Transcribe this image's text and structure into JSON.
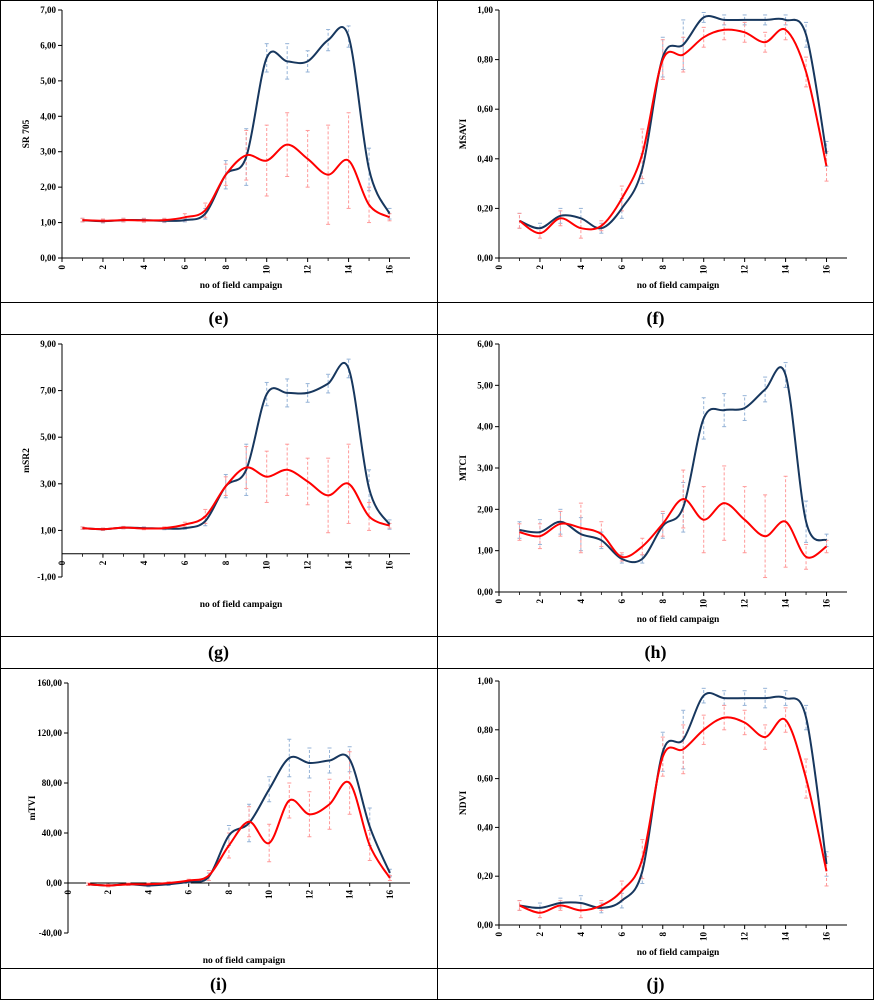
{
  "colors": {
    "series_blue": "#17375e",
    "series_red": "#ff0000",
    "errbar_blue": "#95b3d7",
    "errbar_red": "#ff9999"
  },
  "chart_data": [
    {
      "id": "e",
      "panel_label": "(e)",
      "letter": "e",
      "type": "line",
      "ylabel": "SR 705",
      "xlabel": "no of field campaign",
      "ylim": [
        0,
        7
      ],
      "ystep": 1,
      "xlim": [
        0,
        17
      ],
      "decimals": 2,
      "xticks": [
        0,
        2,
        4,
        6,
        8,
        10,
        12,
        14,
        16
      ],
      "x": [
        1,
        2,
        3,
        4,
        5,
        6,
        7,
        8,
        9,
        10,
        11,
        12,
        13,
        14,
        15,
        16
      ],
      "series": [
        {
          "name": "blue",
          "color": "#17375e",
          "values": [
            1.07,
            1.04,
            1.07,
            1.07,
            1.05,
            1.07,
            1.25,
            2.35,
            2.85,
            5.65,
            5.55,
            5.55,
            6.15,
            6.25,
            2.5,
            1.25
          ],
          "err": [
            0.05,
            0.05,
            0.05,
            0.05,
            0.05,
            0.05,
            0.15,
            0.4,
            0.8,
            0.4,
            0.5,
            0.3,
            0.3,
            0.3,
            0.6,
            0.15
          ]
        },
        {
          "name": "red",
          "color": "#ff0000",
          "values": [
            1.07,
            1.05,
            1.07,
            1.06,
            1.07,
            1.15,
            1.35,
            2.35,
            2.9,
            2.75,
            3.2,
            2.8,
            2.35,
            2.75,
            1.5,
            1.15
          ],
          "err": [
            0.05,
            0.05,
            0.05,
            0.05,
            0.05,
            0.1,
            0.2,
            0.3,
            0.7,
            1.0,
            0.9,
            0.8,
            1.4,
            1.35,
            0.5,
            0.1
          ]
        }
      ]
    },
    {
      "id": "f",
      "panel_label": "(f)",
      "letter": "f",
      "type": "line",
      "ylabel": "MSAVI",
      "xlabel": "no of field campaign",
      "ylim": [
        0,
        1
      ],
      "ystep": 0.2,
      "xlim": [
        0,
        17
      ],
      "decimals": 2,
      "xticks": [
        0,
        2,
        4,
        6,
        8,
        10,
        12,
        14,
        16
      ],
      "x": [
        1,
        2,
        3,
        4,
        5,
        6,
        7,
        8,
        9,
        10,
        11,
        12,
        13,
        14,
        15,
        16
      ],
      "series": [
        {
          "name": "blue",
          "color": "#17375e",
          "values": [
            0.15,
            0.12,
            0.17,
            0.16,
            0.12,
            0.2,
            0.36,
            0.81,
            0.86,
            0.97,
            0.96,
            0.96,
            0.96,
            0.96,
            0.9,
            0.42
          ],
          "err": [
            0.03,
            0.02,
            0.03,
            0.04,
            0.02,
            0.04,
            0.06,
            0.08,
            0.1,
            0.02,
            0.02,
            0.02,
            0.02,
            0.02,
            0.05,
            0.05
          ]
        },
        {
          "name": "red",
          "color": "#ff0000",
          "values": [
            0.15,
            0.1,
            0.16,
            0.12,
            0.13,
            0.24,
            0.42,
            0.8,
            0.82,
            0.89,
            0.92,
            0.91,
            0.87,
            0.92,
            0.75,
            0.37
          ],
          "err": [
            0.03,
            0.02,
            0.03,
            0.04,
            0.02,
            0.05,
            0.1,
            0.08,
            0.07,
            0.04,
            0.04,
            0.04,
            0.04,
            0.04,
            0.06,
            0.06
          ]
        }
      ]
    },
    {
      "id": "g",
      "panel_label": "(g)",
      "letter": "g",
      "type": "line",
      "ylabel": "mSR2",
      "xlabel": "no of field campaign",
      "ylim": [
        -1,
        9
      ],
      "ystep": 2,
      "xlim": [
        0,
        17
      ],
      "decimals": 2,
      "xticks": [
        0,
        2,
        4,
        6,
        8,
        10,
        12,
        14,
        16
      ],
      "x": [
        1,
        2,
        3,
        4,
        5,
        6,
        7,
        8,
        9,
        10,
        11,
        12,
        13,
        14,
        15,
        16
      ],
      "series": [
        {
          "name": "blue",
          "color": "#17375e",
          "values": [
            1.1,
            1.05,
            1.12,
            1.1,
            1.08,
            1.1,
            1.4,
            2.9,
            3.6,
            6.85,
            6.9,
            6.9,
            7.3,
            7.95,
            2.8,
            1.25
          ],
          "err": [
            0.05,
            0.05,
            0.05,
            0.05,
            0.05,
            0.05,
            0.2,
            0.5,
            1.1,
            0.5,
            0.6,
            0.4,
            0.4,
            0.4,
            0.8,
            0.2
          ]
        },
        {
          "name": "red",
          "color": "#ff0000",
          "values": [
            1.1,
            1.05,
            1.12,
            1.08,
            1.1,
            1.25,
            1.6,
            2.9,
            3.7,
            3.3,
            3.6,
            3.1,
            2.5,
            3.0,
            1.6,
            1.2
          ],
          "err": [
            0.05,
            0.05,
            0.05,
            0.05,
            0.05,
            0.1,
            0.3,
            0.4,
            0.9,
            1.1,
            1.1,
            1.0,
            1.6,
            1.7,
            0.6,
            0.1
          ]
        }
      ]
    },
    {
      "id": "h",
      "panel_label": "(h)",
      "letter": "h",
      "type": "line",
      "ylabel": "MTCI",
      "xlabel": "no of field campaign",
      "ylim": [
        0,
        6
      ],
      "ystep": 1,
      "xlim": [
        0,
        17
      ],
      "decimals": 2,
      "xticks": [
        0,
        2,
        4,
        6,
        8,
        10,
        12,
        14,
        16
      ],
      "x": [
        1,
        2,
        3,
        4,
        5,
        6,
        7,
        8,
        9,
        10,
        11,
        12,
        13,
        14,
        15,
        16
      ],
      "series": [
        {
          "name": "blue",
          "color": "#17375e",
          "values": [
            1.5,
            1.45,
            1.7,
            1.4,
            1.25,
            0.8,
            0.8,
            1.6,
            2.05,
            4.2,
            4.4,
            4.45,
            4.9,
            5.25,
            1.7,
            1.25
          ],
          "err": [
            0.2,
            0.3,
            0.3,
            0.4,
            0.2,
            0.1,
            0.1,
            0.3,
            0.6,
            0.5,
            0.4,
            0.3,
            0.3,
            0.3,
            0.5,
            0.15
          ]
        },
        {
          "name": "red",
          "color": "#ff0000",
          "values": [
            1.45,
            1.35,
            1.65,
            1.55,
            1.4,
            0.85,
            1.1,
            1.65,
            2.25,
            1.75,
            2.15,
            1.75,
            1.35,
            1.7,
            0.85,
            1.1
          ],
          "err": [
            0.2,
            0.3,
            0.3,
            0.6,
            0.3,
            0.1,
            0.2,
            0.3,
            0.7,
            0.8,
            0.9,
            0.8,
            1.0,
            1.1,
            0.3,
            0.15
          ]
        }
      ]
    },
    {
      "id": "i",
      "panel_label": "(i)",
      "letter": "i",
      "type": "line",
      "ylabel": "mTVI",
      "xlabel": "no of field campaign",
      "ylim": [
        -40,
        160
      ],
      "ystep": 40,
      "xlim": [
        0,
        17
      ],
      "decimals": 2,
      "xticks": [
        0,
        2,
        4,
        6,
        8,
        10,
        12,
        14,
        16
      ],
      "x": [
        1,
        2,
        3,
        4,
        5,
        6,
        7,
        8,
        9,
        10,
        11,
        12,
        13,
        14,
        15,
        16
      ],
      "series": [
        {
          "name": "blue",
          "color": "#17375e",
          "values": [
            -1,
            -2,
            -1,
            -2,
            -1,
            1,
            5,
            38,
            48,
            75,
            100,
            96,
            98,
            99,
            45,
            8
          ],
          "err": [
            1,
            1,
            1,
            1,
            1,
            1,
            3,
            8,
            15,
            10,
            15,
            12,
            10,
            10,
            15,
            3
          ]
        },
        {
          "name": "red",
          "color": "#ff0000",
          "values": [
            -1,
            -2,
            -1,
            -1,
            0,
            2,
            6,
            30,
            49,
            32,
            66,
            55,
            63,
            80,
            30,
            4
          ],
          "err": [
            1,
            1,
            1,
            1,
            1,
            1,
            4,
            10,
            12,
            15,
            14,
            18,
            20,
            25,
            12,
            2
          ]
        }
      ]
    },
    {
      "id": "j",
      "panel_label": "(j)",
      "letter": "j",
      "type": "line",
      "ylabel": "NDVI",
      "xlabel": "no of field campaign",
      "ylim": [
        0,
        1
      ],
      "ystep": 0.2,
      "xlim": [
        0,
        17
      ],
      "decimals": 2,
      "xticks": [
        0,
        2,
        4,
        6,
        8,
        10,
        12,
        14,
        16
      ],
      "x": [
        1,
        2,
        3,
        4,
        5,
        6,
        7,
        8,
        9,
        10,
        11,
        12,
        13,
        14,
        15,
        16
      ],
      "series": [
        {
          "name": "blue",
          "color": "#17375e",
          "values": [
            0.08,
            0.07,
            0.09,
            0.09,
            0.07,
            0.1,
            0.22,
            0.71,
            0.76,
            0.94,
            0.93,
            0.93,
            0.93,
            0.93,
            0.85,
            0.25
          ],
          "err": [
            0.02,
            0.02,
            0.02,
            0.03,
            0.02,
            0.03,
            0.05,
            0.08,
            0.12,
            0.03,
            0.03,
            0.03,
            0.04,
            0.03,
            0.05,
            0.05
          ]
        },
        {
          "name": "red",
          "color": "#ff0000",
          "values": [
            0.08,
            0.05,
            0.08,
            0.06,
            0.08,
            0.14,
            0.27,
            0.69,
            0.72,
            0.8,
            0.85,
            0.83,
            0.77,
            0.84,
            0.6,
            0.22
          ],
          "err": [
            0.02,
            0.02,
            0.02,
            0.03,
            0.02,
            0.04,
            0.08,
            0.08,
            0.1,
            0.06,
            0.05,
            0.05,
            0.05,
            0.05,
            0.08,
            0.06
          ]
        }
      ]
    }
  ]
}
